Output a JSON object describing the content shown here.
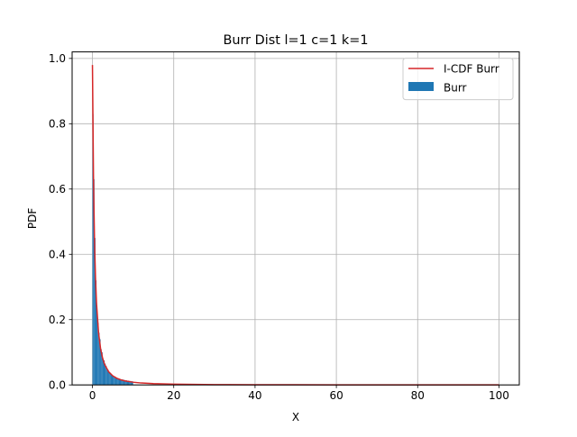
{
  "chart_data": {
    "type": "bar",
    "title": "Burr Dist l=1 c=1 k=1",
    "xlabel": "X",
    "ylabel": "PDF",
    "xlim": [
      -5,
      105
    ],
    "ylim": [
      0,
      1.02
    ],
    "xticks": [
      0,
      20,
      40,
      60,
      80,
      100
    ],
    "yticks": [
      0.0,
      0.2,
      0.4,
      0.6,
      0.8,
      1.0
    ],
    "xtick_labels": [
      "0",
      "20",
      "40",
      "60",
      "80",
      "100"
    ],
    "ytick_labels": [
      "0.0",
      "0.2",
      "0.4",
      "0.6",
      "0.8",
      "1.0"
    ],
    "grid": true,
    "legend_position": "top-right",
    "series": [
      {
        "name": "I-CDF Burr",
        "kind": "line",
        "color": "#d62728",
        "x": [
          0,
          0.25,
          0.5,
          0.75,
          1,
          1.5,
          2,
          2.5,
          3,
          4,
          5,
          6,
          7,
          8,
          10,
          12,
          15,
          20,
          25,
          30,
          40,
          50,
          60,
          70,
          80,
          90,
          100
        ],
        "y": [
          0.98,
          0.64,
          0.444,
          0.327,
          0.25,
          0.16,
          0.111,
          0.082,
          0.0625,
          0.04,
          0.0278,
          0.0204,
          0.0156,
          0.0123,
          0.0083,
          0.0059,
          0.0039,
          0.0023,
          0.0015,
          0.001,
          0.0006,
          0.0004,
          0.0003,
          0.0002,
          0.00015,
          0.00012,
          0.0001
        ]
      },
      {
        "name": "Burr",
        "kind": "histogram",
        "color": "#1f77b4",
        "bin_width": 0.25,
        "x": [
          0.0,
          0.25,
          0.5,
          0.75,
          1.0,
          1.25,
          1.5,
          1.75,
          2.0,
          2.25,
          2.5,
          2.75,
          3.0,
          3.25,
          3.5,
          3.75,
          4.0,
          4.25,
          4.5,
          4.75,
          5.0,
          5.25,
          5.5,
          5.75,
          6.0,
          6.25,
          6.5,
          6.75,
          7.0,
          7.25,
          7.5,
          7.75,
          8.0,
          8.25,
          8.5,
          8.75,
          9.0,
          9.25,
          9.5,
          9.75
        ],
        "values": [
          0.83,
          0.63,
          0.45,
          0.32,
          0.22,
          0.19,
          0.16,
          0.14,
          0.11,
          0.1,
          0.08,
          0.075,
          0.065,
          0.058,
          0.05,
          0.046,
          0.04,
          0.037,
          0.034,
          0.031,
          0.028,
          0.026,
          0.024,
          0.022,
          0.021,
          0.02,
          0.019,
          0.018,
          0.017,
          0.017,
          0.016,
          0.015,
          0.014,
          0.014,
          0.013,
          0.013,
          0.012,
          0.012,
          0.011,
          0.011
        ]
      }
    ]
  }
}
